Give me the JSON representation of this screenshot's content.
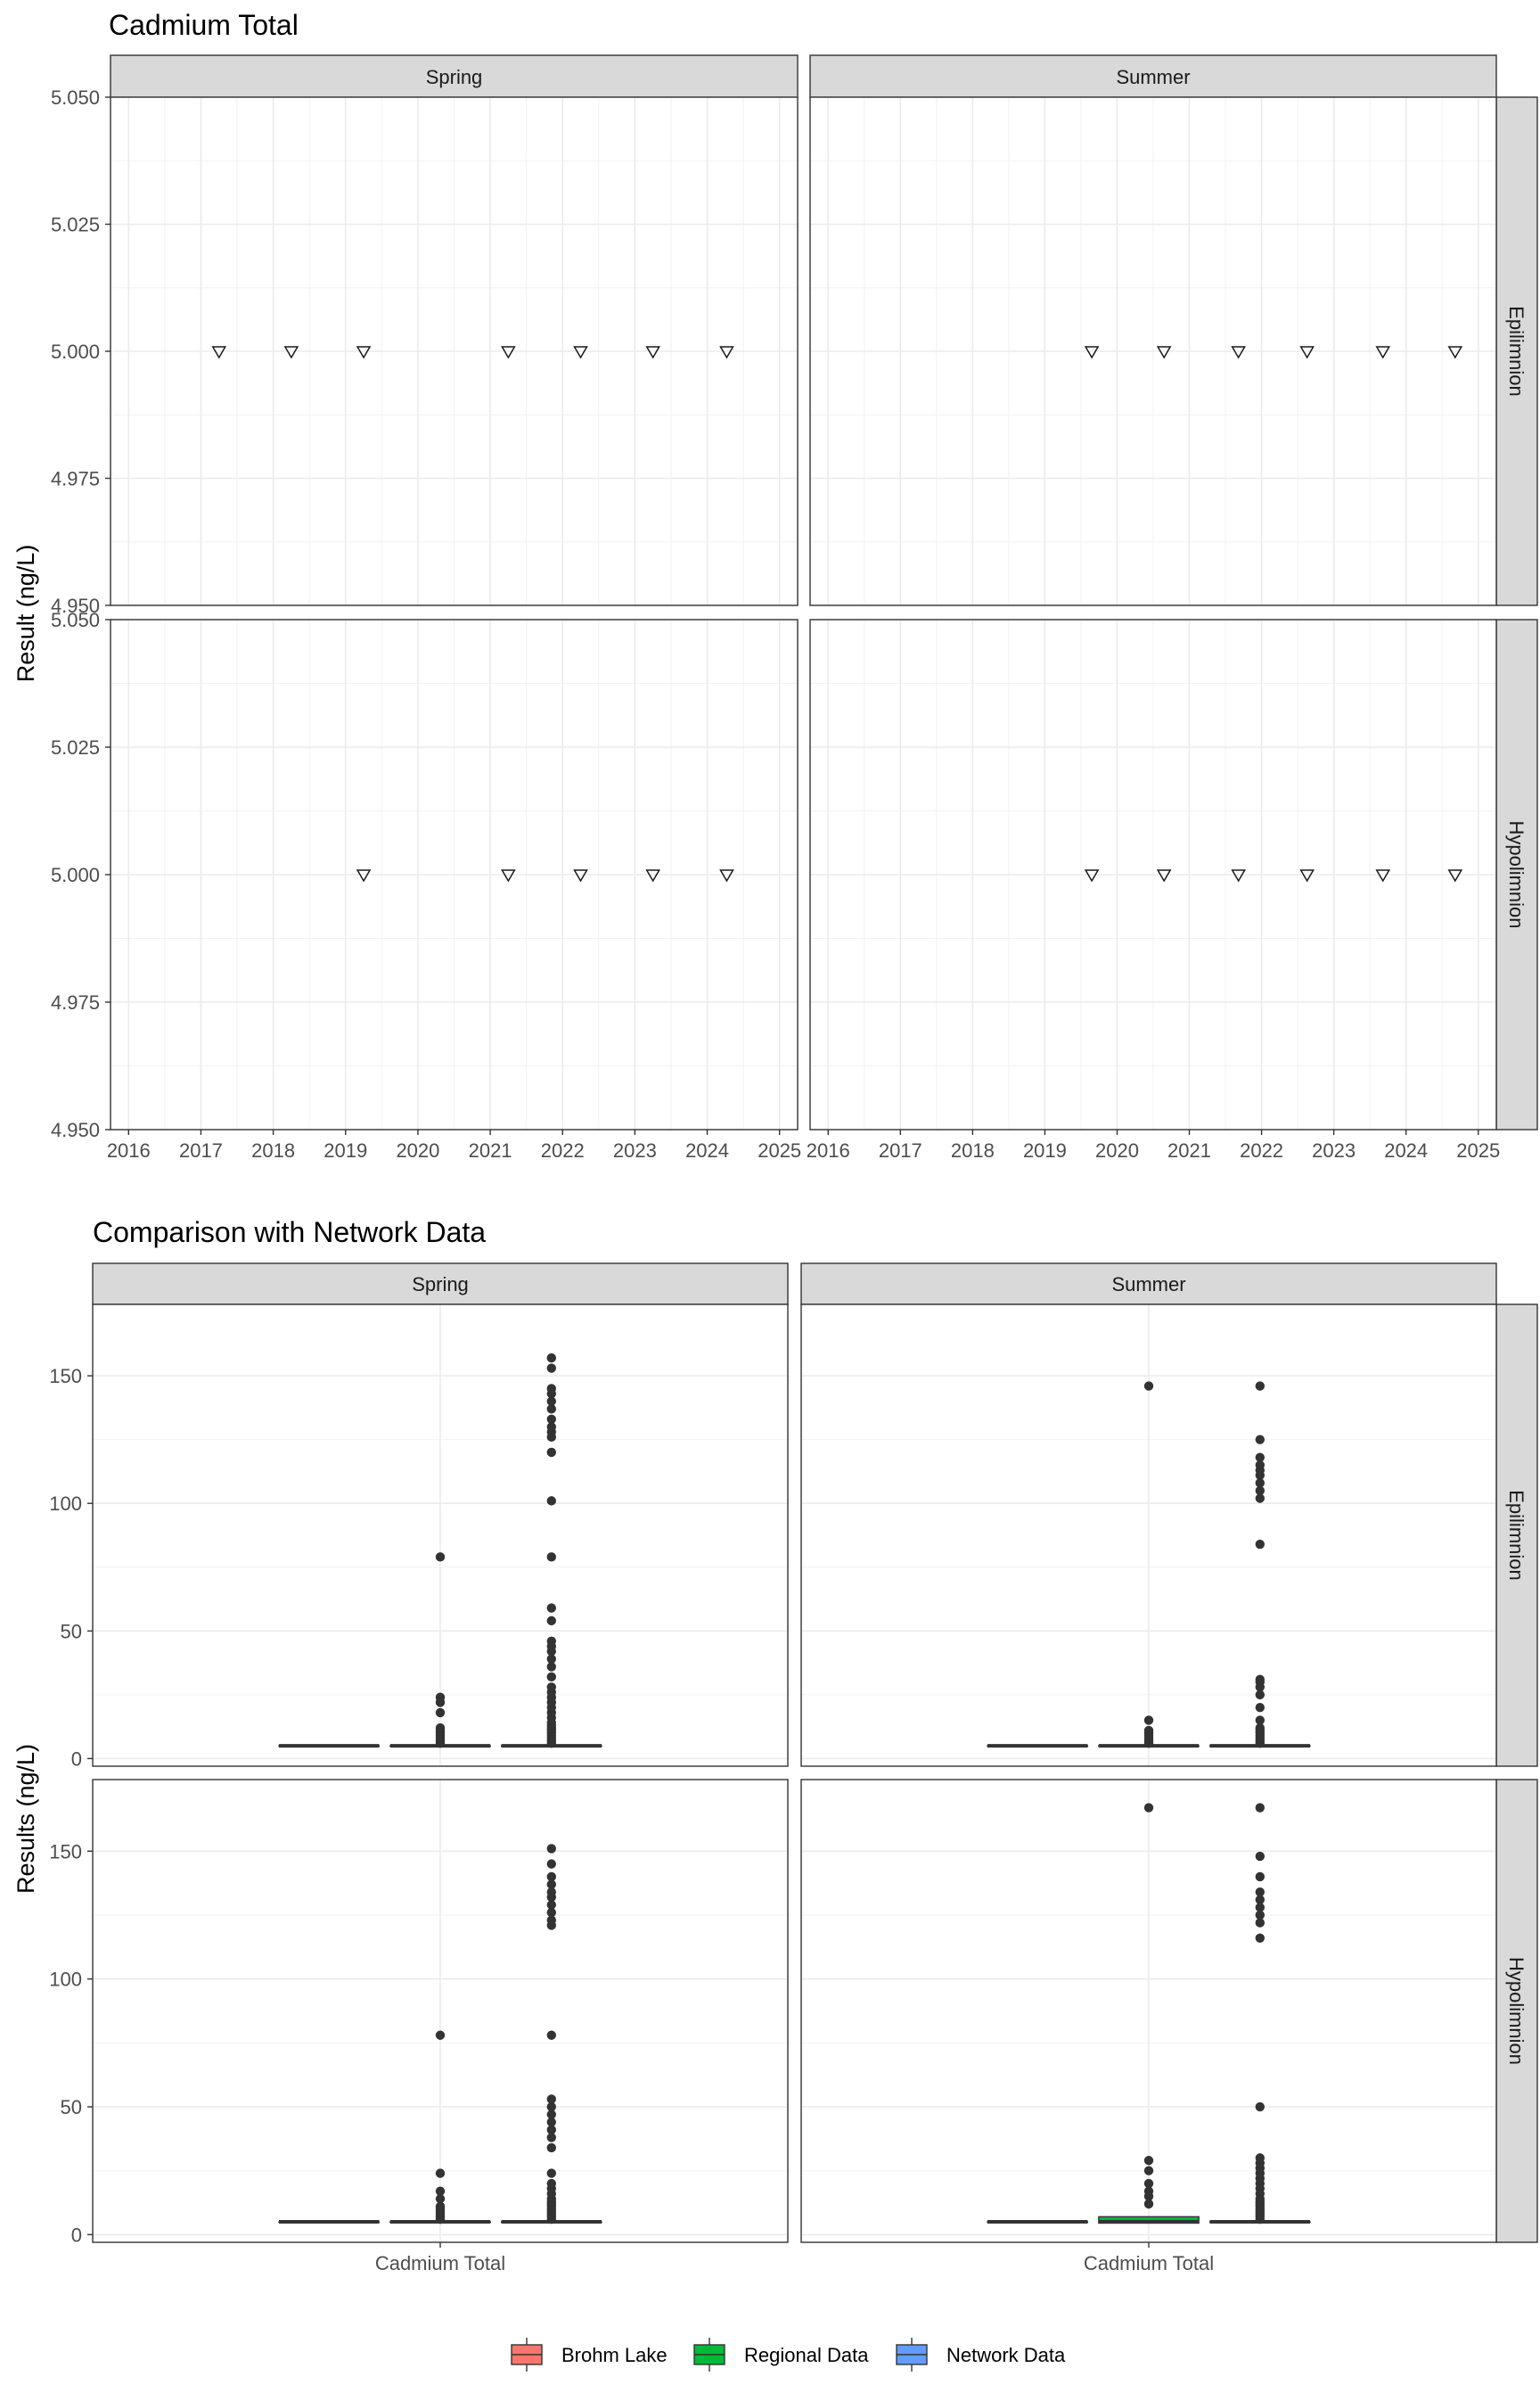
{
  "figures": [
    {
      "title": "Cadmium Total",
      "ylabel": "Result (ng/L)",
      "col_strips": [
        "Spring",
        "Summer"
      ],
      "row_strips": [
        "Epilimnion",
        "Hypolimnion"
      ],
      "x_ticks": [
        "2016",
        "2017",
        "2018",
        "2019",
        "2020",
        "2021",
        "2022",
        "2023",
        "2024",
        "2025"
      ],
      "y_ticks": [
        "4.950",
        "4.975",
        "5.000",
        "5.025",
        "5.050"
      ]
    },
    {
      "title": "Comparison with Network Data",
      "ylabel": "Results (ng/L)",
      "col_strips": [
        "Spring",
        "Summer"
      ],
      "row_strips": [
        "Epilimnion",
        "Hypolimnion"
      ],
      "x_category": "Cadmium Total",
      "y_ticks": [
        "0",
        "50",
        "100",
        "150"
      ]
    }
  ],
  "legend": {
    "items": [
      {
        "label": "Brohm Lake",
        "color": "#F8766D"
      },
      {
        "label": "Regional Data",
        "color": "#00BA38"
      },
      {
        "label": "Network Data",
        "color": "#619CFF"
      }
    ]
  },
  "chart_data": [
    {
      "type": "scatter",
      "title": "Cadmium Total",
      "xlabel": "",
      "ylabel": "Result (ng/L)",
      "xlim": [
        2015.75,
        2025.25
      ],
      "ylim": [
        4.95,
        5.05
      ],
      "marker": "open-down-triangle",
      "panels": [
        {
          "season": "Spring",
          "layer": "Epilimnion",
          "points": [
            {
              "x": 2017.25,
              "y": 5.0
            },
            {
              "x": 2018.25,
              "y": 5.0
            },
            {
              "x": 2019.25,
              "y": 5.0
            },
            {
              "x": 2021.25,
              "y": 5.0
            },
            {
              "x": 2022.25,
              "y": 5.0
            },
            {
              "x": 2023.25,
              "y": 5.0
            },
            {
              "x": 2024.27,
              "y": 5.0
            }
          ]
        },
        {
          "season": "Summer",
          "layer": "Epilimnion",
          "points": [
            {
              "x": 2019.65,
              "y": 5.0
            },
            {
              "x": 2020.65,
              "y": 5.0
            },
            {
              "x": 2021.68,
              "y": 5.0
            },
            {
              "x": 2022.63,
              "y": 5.0
            },
            {
              "x": 2023.68,
              "y": 5.0
            },
            {
              "x": 2024.68,
              "y": 5.0
            }
          ]
        },
        {
          "season": "Spring",
          "layer": "Hypolimnion",
          "points": [
            {
              "x": 2019.25,
              "y": 5.0
            },
            {
              "x": 2021.25,
              "y": 5.0
            },
            {
              "x": 2022.25,
              "y": 5.0
            },
            {
              "x": 2023.25,
              "y": 5.0
            },
            {
              "x": 2024.27,
              "y": 5.0
            }
          ]
        },
        {
          "season": "Summer",
          "layer": "Hypolimnion",
          "points": [
            {
              "x": 2019.65,
              "y": 5.0
            },
            {
              "x": 2020.65,
              "y": 5.0
            },
            {
              "x": 2021.68,
              "y": 5.0
            },
            {
              "x": 2022.63,
              "y": 5.0
            },
            {
              "x": 2023.68,
              "y": 5.0
            },
            {
              "x": 2024.68,
              "y": 5.0
            }
          ]
        }
      ]
    },
    {
      "type": "box",
      "title": "Comparison with Network Data",
      "xlabel": "",
      "ylabel": "Results (ng/L)",
      "categories": [
        "Cadmium Total"
      ],
      "ylim": [
        -3,
        178
      ],
      "series_order": [
        "Brohm Lake",
        "Regional Data",
        "Network Data"
      ],
      "panels": [
        {
          "season": "Spring",
          "layer": "Epilimnion",
          "boxes": [
            {
              "group": "Brohm Lake",
              "q1": 5,
              "median": 5,
              "q3": 5,
              "outliers": []
            },
            {
              "group": "Regional Data",
              "q1": 5,
              "median": 5,
              "q3": 5,
              "outliers": [
                6,
                7,
                8,
                9,
                10,
                11,
                12,
                18,
                22,
                24,
                79
              ]
            },
            {
              "group": "Network Data",
              "q1": 5,
              "median": 5,
              "q3": 5,
              "outliers": [
                6,
                7,
                8,
                9,
                10,
                11,
                12,
                13,
                14,
                16,
                18,
                20,
                22,
                24,
                26,
                28,
                32,
                36,
                39,
                42,
                44,
                46,
                54,
                59,
                79,
                101,
                120,
                126,
                128,
                130,
                133,
                137,
                140,
                143,
                145,
                153,
                157
              ]
            }
          ]
        },
        {
          "season": "Summer",
          "layer": "Epilimnion",
          "boxes": [
            {
              "group": "Brohm Lake",
              "q1": 5,
              "median": 5,
              "q3": 5,
              "outliers": []
            },
            {
              "group": "Regional Data",
              "q1": 5,
              "median": 5,
              "q3": 5,
              "outliers": [
                6,
                7,
                8,
                9,
                10,
                11,
                15,
                146
              ]
            },
            {
              "group": "Network Data",
              "q1": 5,
              "median": 5,
              "q3": 5,
              "outliers": [
                6,
                7,
                8,
                9,
                10,
                11,
                12,
                15,
                20,
                25,
                28,
                30,
                31,
                84,
                102,
                105,
                108,
                111,
                113,
                115,
                118,
                125,
                146
              ]
            }
          ]
        },
        {
          "season": "Spring",
          "layer": "Hypolimnion",
          "boxes": [
            {
              "group": "Brohm Lake",
              "q1": 5,
              "median": 5,
              "q3": 5,
              "outliers": []
            },
            {
              "group": "Regional Data",
              "q1": 5,
              "median": 5,
              "q3": 5,
              "outliers": [
                6,
                7,
                8,
                9,
                10,
                11,
                14,
                17,
                24,
                78
              ]
            },
            {
              "group": "Network Data",
              "q1": 5,
              "median": 5,
              "q3": 5,
              "outliers": [
                6,
                7,
                8,
                9,
                10,
                11,
                12,
                13,
                14,
                16,
                18,
                20,
                24,
                34,
                38,
                41,
                44,
                47,
                50,
                53,
                78,
                121,
                123,
                126,
                129,
                132,
                134,
                137,
                140,
                145,
                151
              ]
            }
          ]
        },
        {
          "season": "Summer",
          "layer": "Hypolimnion",
          "boxes": [
            {
              "group": "Brohm Lake",
              "q1": 5,
              "median": 5,
              "q3": 5,
              "outliers": []
            },
            {
              "group": "Regional Data",
              "q1": 4.5,
              "median": 5,
              "q3": 7,
              "outliers": [
                12,
                15,
                17,
                20,
                25,
                29,
                167
              ]
            },
            {
              "group": "Network Data",
              "q1": 5,
              "median": 5,
              "q3": 5,
              "outliers": [
                6,
                7,
                8,
                9,
                10,
                11,
                12,
                13,
                14,
                16,
                18,
                20,
                22,
                24,
                26,
                28,
                30,
                50,
                116,
                122,
                125,
                128,
                131,
                134,
                140,
                148,
                167
              ]
            }
          ]
        }
      ]
    }
  ]
}
